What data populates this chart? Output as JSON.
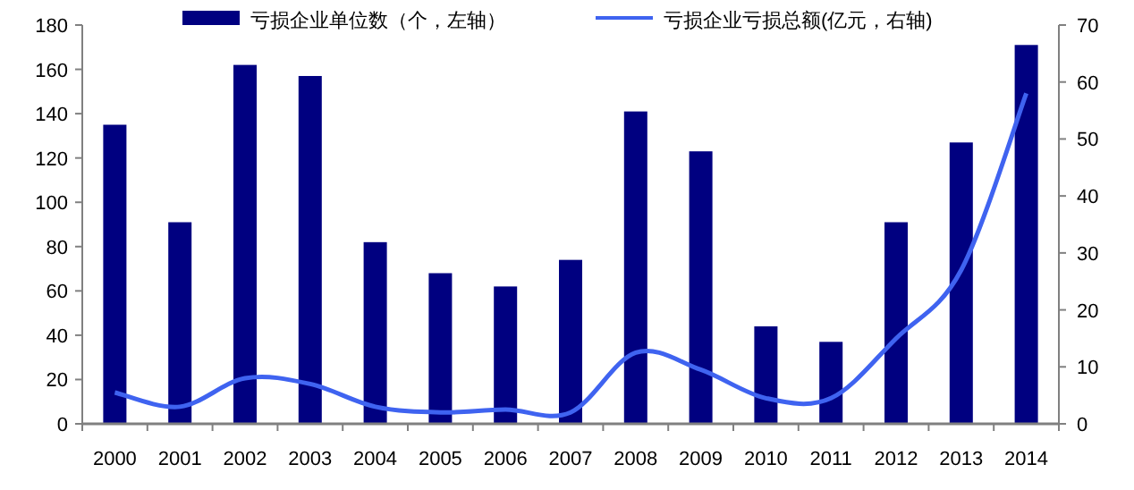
{
  "chart_data": {
    "type": "bar",
    "categories": [
      "2000",
      "2001",
      "2002",
      "2003",
      "2004",
      "2005",
      "2006",
      "2007",
      "2008",
      "2009",
      "2010",
      "2011",
      "2012",
      "2013",
      "2014"
    ],
    "series": [
      {
        "name": "亏损企业单位数（个，左轴）",
        "color": "#000080",
        "values": [
          135,
          91,
          162,
          157,
          82,
          68,
          62,
          74,
          141,
          123,
          44,
          37,
          91,
          127,
          171
        ]
      },
      {
        "name": "亏损企业亏损总额(亿元，右轴)",
        "type": "line",
        "axis": "y2",
        "color": "#3f63f0",
        "values": [
          5.5,
          3,
          8,
          7,
          3,
          2,
          2.5,
          2,
          12.5,
          9.5,
          4.5,
          4.5,
          15,
          27,
          58
        ]
      }
    ],
    "ylim": [
      0,
      180
    ],
    "yticks": [
      0,
      20,
      40,
      60,
      80,
      100,
      120,
      140,
      160,
      180
    ],
    "y2lim": [
      0,
      70
    ],
    "y2ticks": [
      0,
      10,
      20,
      30,
      40,
      50,
      60,
      70
    ],
    "legend": "top",
    "grid": false
  }
}
